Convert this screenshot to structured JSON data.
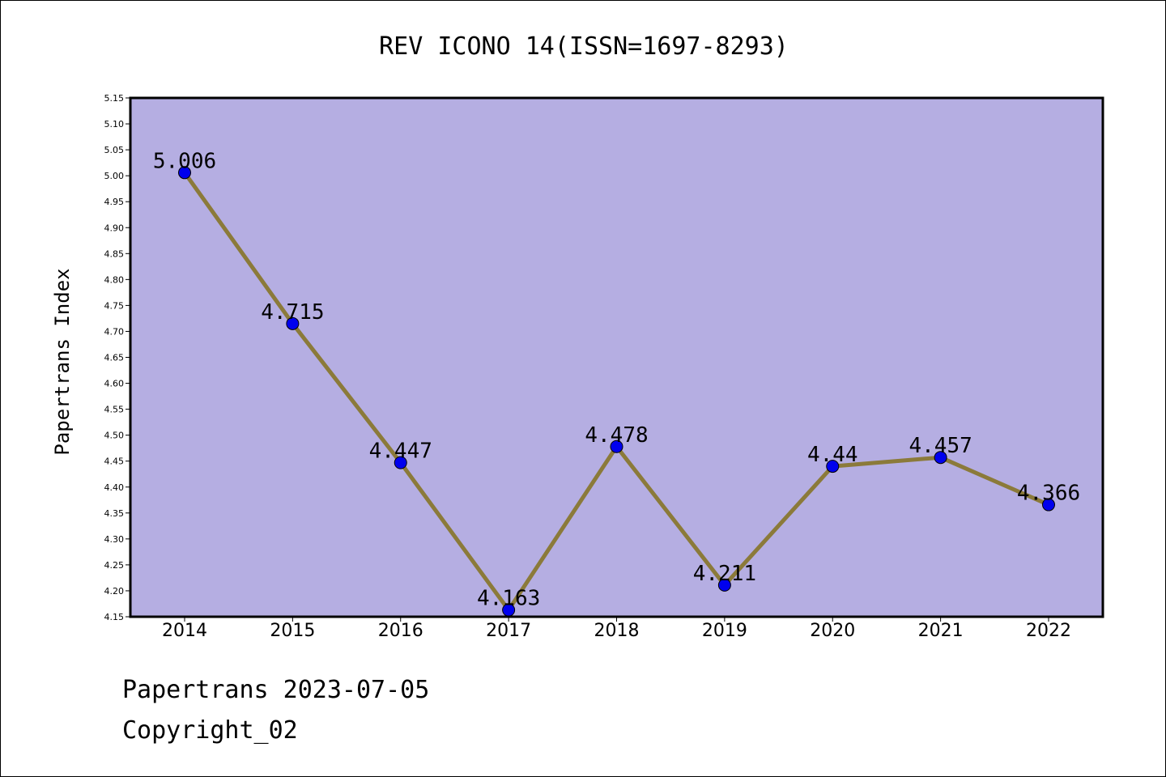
{
  "chart_data": {
    "type": "line",
    "title": "REV ICONO 14(ISSN=1697-8293)",
    "xlabel": "",
    "ylabel": "Papertrans Index",
    "categories": [
      "2014",
      "2015",
      "2016",
      "2017",
      "2018",
      "2019",
      "2020",
      "2021",
      "2022"
    ],
    "values": [
      5.006,
      4.715,
      4.447,
      4.163,
      4.478,
      4.211,
      4.44,
      4.457,
      4.366
    ],
    "data_labels": [
      "5.006",
      "4.715",
      "4.447",
      "4.163",
      "4.478",
      "4.211",
      "4.44",
      "4.457",
      "4.366"
    ],
    "ylim": [
      4.15,
      5.15
    ],
    "yticks": [
      "4.15",
      "4.20",
      "4.25",
      "4.30",
      "4.35",
      "4.40",
      "4.45",
      "4.50",
      "4.55",
      "4.60",
      "4.65",
      "4.70",
      "4.75",
      "4.80",
      "4.85",
      "4.90",
      "4.95",
      "5.00",
      "5.05",
      "5.10",
      "5.15"
    ],
    "grid": false,
    "colors": {
      "plot_background": "#b5aee2",
      "line": "#8b7a3a",
      "marker": "#0000ee"
    }
  },
  "footer": {
    "line1": "Papertrans 2023-07-05",
    "line2": "Copyright_02"
  }
}
